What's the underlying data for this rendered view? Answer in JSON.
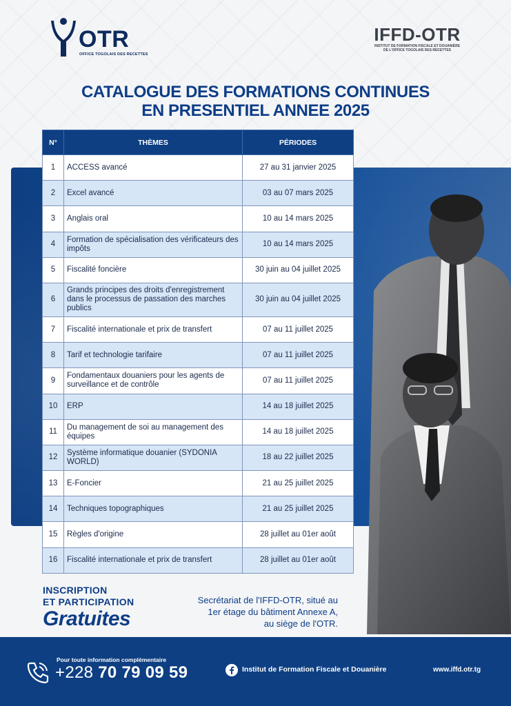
{
  "header": {
    "otr_logo": {
      "wordmark": "OTR",
      "tagline": "OFFICE TOGOLAIS DES RECETTES"
    },
    "iffd_logo": {
      "wordmark": "IFFD-OTR",
      "tagline_1": "INSTITUT DE FORMATION FISCALE ET DOUANIÈRE",
      "tagline_2": "DE L'OFFICE TOGOLAIS DES RECETTES"
    }
  },
  "title": {
    "line1": "CATALOGUE DES FORMATIONS CONTINUES",
    "line2": "EN PRESENTIEL ANNEE 2025"
  },
  "table": {
    "headers": {
      "num": "N°",
      "theme": "THÈMES",
      "period": "PÉRIODES"
    },
    "rows": [
      {
        "num": "1",
        "theme": "ACCESS avancé",
        "period": "27 au 31 janvier 2025"
      },
      {
        "num": "2",
        "theme": "Excel avancé",
        "period": "03 au 07 mars 2025"
      },
      {
        "num": "3",
        "theme": "Anglais oral",
        "period": "10 au 14 mars 2025"
      },
      {
        "num": "4",
        "theme": "Formation de spécialisation des vérificateurs des impôts",
        "period": "10 au 14 mars 2025"
      },
      {
        "num": "5",
        "theme": "Fiscalité foncière",
        "period": "30 juin au 04 juillet 2025"
      },
      {
        "num": "6",
        "theme": "Grands principes des droits d'enregistrement dans le processus de passation des marches publics",
        "period": "30 juin au 04 juillet 2025"
      },
      {
        "num": "7",
        "theme": "Fiscalité internationale et prix de transfert",
        "period": "07 au 11 juillet 2025"
      },
      {
        "num": "8",
        "theme": "Tarif et technologie tarifaire",
        "period": "07 au 11 juillet 2025"
      },
      {
        "num": "9",
        "theme": "Fondamentaux douaniers pour les agents de surveillance et de contrôle",
        "period": "07 au 11 juillet 2025"
      },
      {
        "num": "10",
        "theme": "ERP",
        "period": "14 au 18 juillet 2025"
      },
      {
        "num": "11",
        "theme": "Du management de soi au management des équipes",
        "period": "14 au 18 juillet 2025"
      },
      {
        "num": "12",
        "theme": "Système informatique douanier (SYDONIA WORLD)",
        "period": "18 au 22 juillet 2025"
      },
      {
        "num": "13",
        "theme": "E-Foncier",
        "period": "21 au 25 juillet 2025"
      },
      {
        "num": "14",
        "theme": "Techniques topographiques",
        "period": "21 au 25 juillet 2025"
      },
      {
        "num": "15",
        "theme": "Règles d'origine",
        "period": "28 juillet au 01er août"
      },
      {
        "num": "16",
        "theme": "Fiscalité internationale et prix de transfert",
        "period": "28 juillet au 01er août"
      }
    ]
  },
  "inscription": {
    "line1": "INSCRIPTION",
    "line2": "ET PARTICIPATION",
    "big": "Gratuites"
  },
  "secretariat": {
    "line1": "Secrétariat de l'IFFD-OTR, situé au",
    "line2": "1er étage du bâtiment Annexe A,",
    "line3": "au siège de l'OTR."
  },
  "footer": {
    "info_label": "Pour toute information complémentaire",
    "phone_prefix": "+228",
    "phone_number": "70 79 09 59",
    "facebook_name": "Institut de Formation Fiscale et Douanière",
    "website": "www.iffd.otr.tg"
  },
  "colors": {
    "brand_blue": "#0e3f82",
    "row_alt": "#d6e6f7",
    "title_blue": "#0d3d86"
  }
}
